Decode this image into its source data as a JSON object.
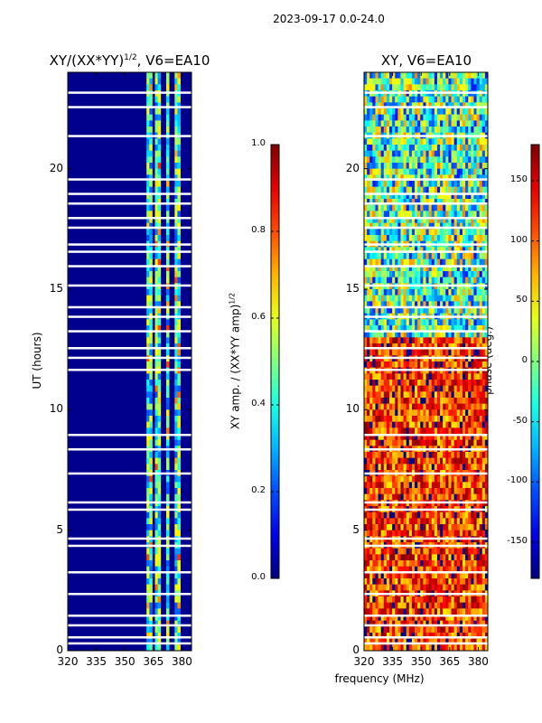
{
  "figure": {
    "suptitle": "2023-09-17 0.0-24.0",
    "xlabel": "frequency (MHz)",
    "colors": {
      "amp_background": "#00008c",
      "phase_colormap": "jet",
      "gap": "#ffffff"
    }
  },
  "chart_data": [
    {
      "type": "heatmap",
      "title": "XY/(XX*YY)",
      "title_superscript": "1/2",
      "title_suffix": ", V6=EA10",
      "xlabel": "",
      "ylabel": "UT (hours)",
      "xlim": [
        320,
        385
      ],
      "ylim": [
        0,
        24
      ],
      "xticks": [
        "320",
        "335",
        "350",
        "365",
        "380"
      ],
      "xtick_values": [
        320,
        335,
        350,
        365,
        380
      ],
      "yticks": [
        "0",
        "5",
        "10",
        "15",
        "20"
      ],
      "ytick_values": [
        0,
        5,
        10,
        15,
        20
      ],
      "colorbar": {
        "label": "XY amp. / (XX*YY amp)",
        "label_superscript": "1/2",
        "range": [
          0.0,
          1.0
        ],
        "ticks": [
          "0.0",
          "0.2",
          "0.4",
          "0.6",
          "0.8",
          "1.0"
        ],
        "tick_values": [
          0.0,
          0.2,
          0.4,
          0.6,
          0.8,
          1.0
        ]
      },
      "high_amp_freq_bands_mhz": [
        [
          361.5,
          365
        ],
        [
          366,
          369
        ],
        [
          371,
          373.5
        ],
        [
          376.5,
          379
        ]
      ],
      "typical_values": {
        "low_band": 0.05,
        "high_band_min": 0.2,
        "high_band_max": 0.85
      }
    },
    {
      "type": "heatmap",
      "title": "XY, V6=EA10",
      "xlabel": "frequency (MHz)",
      "ylabel": "",
      "xlim": [
        320,
        385
      ],
      "ylim": [
        0,
        24
      ],
      "xticks": [
        "320",
        "335",
        "350",
        "365",
        "380"
      ],
      "xtick_values": [
        320,
        335,
        350,
        365,
        380
      ],
      "yticks": [
        "0",
        "5",
        "10",
        "15",
        "20"
      ],
      "ytick_values": [
        0,
        5,
        10,
        15,
        20
      ],
      "colorbar": {
        "label": "phase (deg.)",
        "range": [
          -180,
          180
        ],
        "ticks": [
          "-150",
          "-100",
          "-50",
          "0",
          "50",
          "100",
          "150"
        ],
        "tick_values": [
          -150,
          -100,
          -50,
          0,
          50,
          100,
          150
        ]
      },
      "typical_values": {
        "hours_0_to_13": 120,
        "hours_13_to_24": -20
      }
    }
  ]
}
